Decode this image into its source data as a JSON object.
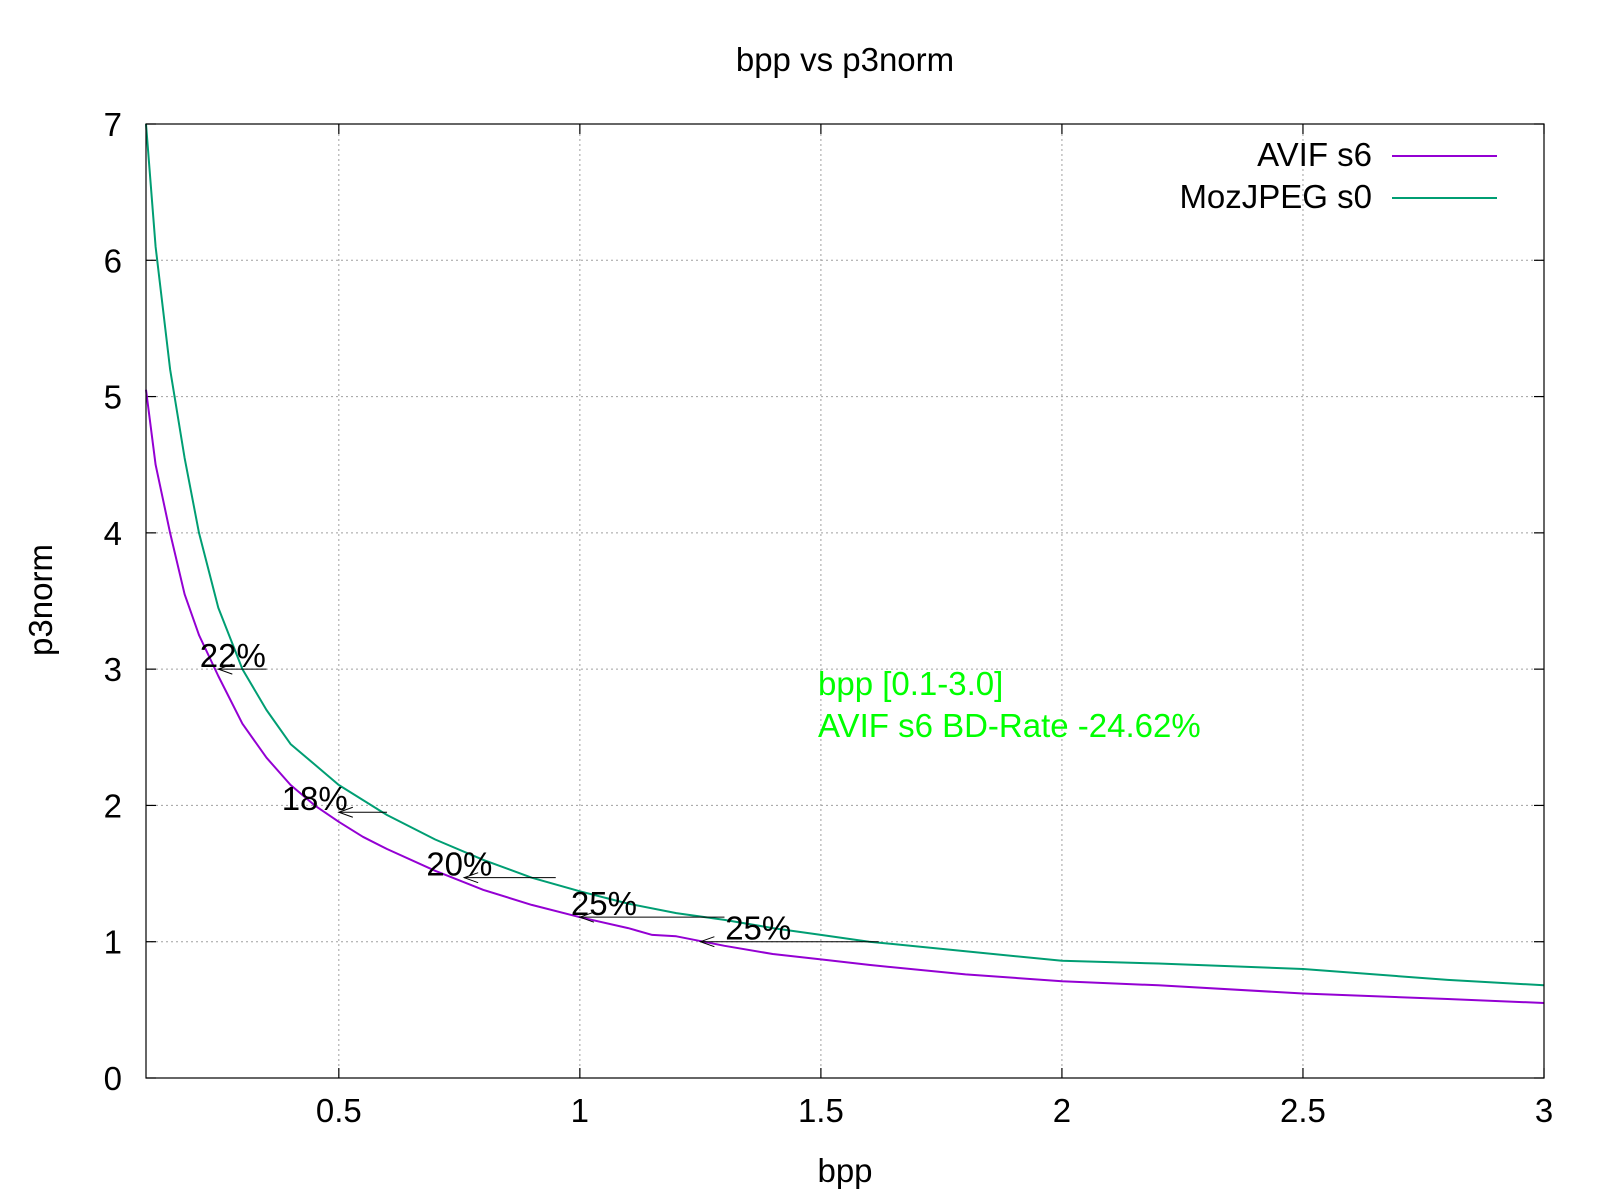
{
  "chart_data": {
    "type": "line",
    "title": "bpp vs p3norm",
    "xlabel": "bpp",
    "ylabel": "p3norm",
    "xlim": [
      0.1,
      3.0
    ],
    "ylim": [
      0,
      7
    ],
    "xticks": [
      0.5,
      1,
      1.5,
      2,
      2.5,
      3
    ],
    "xtick_labels": [
      "0.5",
      "1",
      "1.5",
      "2",
      "2.5",
      "3"
    ],
    "yticks": [
      0,
      1,
      2,
      3,
      4,
      5,
      6,
      7
    ],
    "ytick_labels": [
      "0",
      "1",
      "2",
      "3",
      "4",
      "5",
      "6",
      "7"
    ],
    "grid": true,
    "legend_position": "top-right",
    "series": [
      {
        "name": "AVIF s6",
        "color": "#9400d3",
        "x": [
          0.1,
          0.12,
          0.15,
          0.18,
          0.21,
          0.25,
          0.3,
          0.35,
          0.4,
          0.45,
          0.5,
          0.55,
          0.6,
          0.7,
          0.8,
          0.9,
          1.0,
          1.1,
          1.15,
          1.2,
          1.3,
          1.4,
          1.5,
          1.6,
          1.8,
          2.0,
          2.2,
          2.5,
          2.8,
          3.0
        ],
        "y": [
          5.05,
          4.5,
          4.0,
          3.55,
          3.25,
          2.95,
          2.6,
          2.35,
          2.15,
          2.0,
          1.88,
          1.77,
          1.68,
          1.52,
          1.38,
          1.27,
          1.18,
          1.1,
          1.05,
          1.04,
          0.97,
          0.91,
          0.87,
          0.83,
          0.76,
          0.71,
          0.68,
          0.62,
          0.58,
          0.55
        ]
      },
      {
        "name": "MozJPEG s0",
        "color": "#009e73",
        "x": [
          0.1,
          0.12,
          0.15,
          0.18,
          0.21,
          0.25,
          0.3,
          0.35,
          0.4,
          0.45,
          0.5,
          0.6,
          0.7,
          0.8,
          0.9,
          1.0,
          1.1,
          1.2,
          1.3,
          1.4,
          1.5,
          1.6,
          1.8,
          2.0,
          2.2,
          2.5,
          2.8,
          3.0
        ],
        "y": [
          7.0,
          6.1,
          5.2,
          4.55,
          4.0,
          3.45,
          3.0,
          2.7,
          2.45,
          2.3,
          2.15,
          1.93,
          1.75,
          1.6,
          1.47,
          1.37,
          1.28,
          1.21,
          1.16,
          1.1,
          1.05,
          1.0,
          0.93,
          0.86,
          0.84,
          0.8,
          0.72,
          0.68
        ]
      }
    ],
    "annotations": [
      {
        "text": "22%",
        "x": 0.28,
        "y": 3.0,
        "arrow_from_x": 0.35,
        "arrow_to_x": 0.25
      },
      {
        "text": "18%",
        "x": 0.45,
        "y": 1.95,
        "arrow_from_x": 0.6,
        "arrow_to_x": 0.5
      },
      {
        "text": "20%",
        "x": 0.75,
        "y": 1.47,
        "arrow_from_x": 0.95,
        "arrow_to_x": 0.76
      },
      {
        "text": "25%",
        "x": 1.05,
        "y": 1.18,
        "arrow_from_x": 1.3,
        "arrow_to_x": 1.0
      },
      {
        "text": "25%",
        "x": 1.37,
        "y": 1.0,
        "arrow_from_x": 1.62,
        "arrow_to_x": 1.25
      }
    ],
    "info_text": [
      "bpp [0.1-3.0]",
      "AVIF s6 BD-Rate -24.62%"
    ],
    "info_color": "#00ff00"
  }
}
